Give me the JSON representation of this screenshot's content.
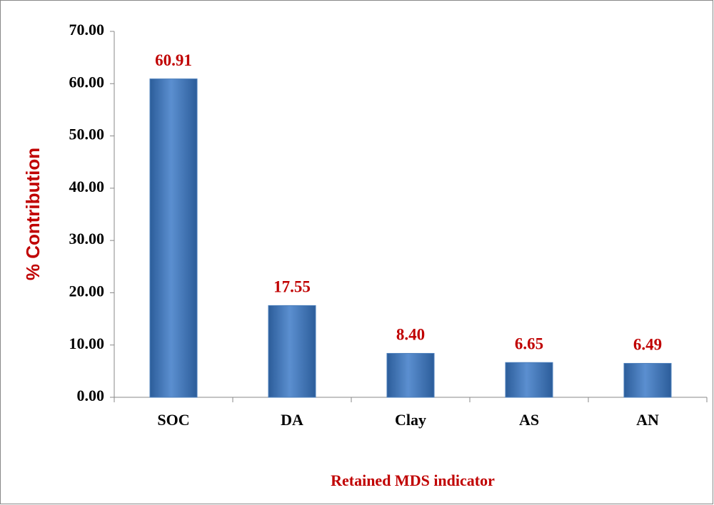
{
  "chart_data": {
    "type": "bar",
    "y_label": "% Contribution",
    "x_label": "Retained MDS indicator",
    "categories": [
      "SOC",
      "DA",
      "Clay",
      "AS",
      "AN"
    ],
    "values": [
      60.91,
      17.55,
      8.4,
      6.65,
      6.49
    ],
    "value_labels": [
      "60.91",
      "17.55",
      "8.40",
      "6.65",
      "6.49"
    ],
    "color": "#4a7ebb",
    "ylim": [
      0,
      70
    ],
    "yticks": [
      {
        "value": 0,
        "label": "0.00"
      },
      {
        "value": 10,
        "label": "10.00"
      },
      {
        "value": 20,
        "label": "20.00"
      },
      {
        "value": 30,
        "label": "30.00"
      },
      {
        "value": 40,
        "label": "40.00"
      },
      {
        "value": 50,
        "label": "50.00"
      },
      {
        "value": 60,
        "label": "60.00"
      },
      {
        "value": 70,
        "label": "70.00"
      }
    ],
    "grid": false
  }
}
